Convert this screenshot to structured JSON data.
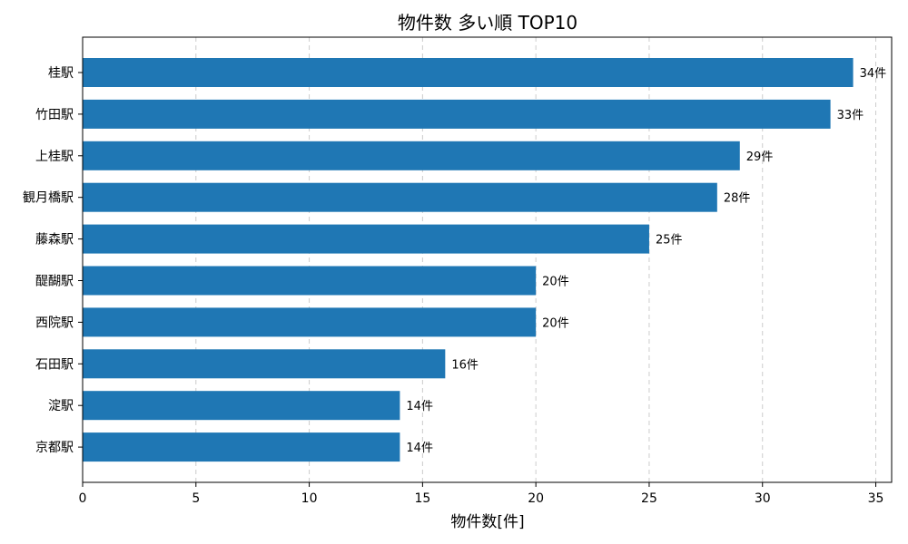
{
  "chart_data": {
    "type": "bar",
    "orientation": "horizontal",
    "title": "物件数 多い順 TOP10",
    "xlabel": "物件数[件]",
    "ylabel": "",
    "categories": [
      "桂駅",
      "竹田駅",
      "上桂駅",
      "観月橋駅",
      "藤森駅",
      "醍醐駅",
      "西院駅",
      "石田駅",
      "淀駅",
      "京都駅"
    ],
    "values": [
      34,
      33,
      29,
      28,
      25,
      20,
      20,
      16,
      14,
      14
    ],
    "data_labels": [
      "34件",
      "33件",
      "29件",
      "28件",
      "25件",
      "20件",
      "20件",
      "16件",
      "14件",
      "14件"
    ],
    "xlim": [
      0,
      35.7
    ],
    "xticks": [
      0,
      5,
      10,
      15,
      20,
      25,
      30,
      35
    ],
    "grid": "x-dashed",
    "bar_color": "#1f77b4"
  }
}
